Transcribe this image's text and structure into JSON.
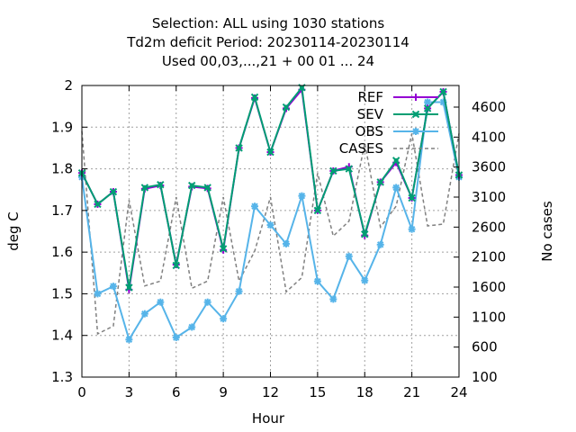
{
  "chart_data": {
    "type": "line",
    "title_lines": [
      "Selection: ALL using  1030 stations",
      "Td2m deficit   Period: 20230114-20230114",
      "Used  00,03,...,21  + 00 01 ... 24"
    ],
    "xlabel": "Hour",
    "ylabel": "deg C",
    "y2label": "No cases",
    "xlim": [
      0,
      24
    ],
    "ylim": [
      1.3,
      2.0
    ],
    "y2lim": [
      100,
      4960
    ],
    "xticks": [
      "0",
      "3",
      "6",
      "9",
      "12",
      "15",
      "18",
      "21",
      "24"
    ],
    "yticks": [
      "1.3",
      "1.4",
      "1.5",
      "1.6",
      "1.7",
      "1.8",
      "1.9",
      "2"
    ],
    "y2ticks": [
      "100",
      "600",
      "1100",
      "1600",
      "2100",
      "2600",
      "3100",
      "3600",
      "4100",
      "4600"
    ],
    "grid": true,
    "legend_position": "top-right",
    "x": [
      0,
      1,
      2,
      3,
      4,
      5,
      6,
      7,
      8,
      9,
      10,
      11,
      12,
      13,
      14,
      15,
      16,
      17,
      18,
      19,
      20,
      21,
      22,
      23,
      24
    ],
    "series": [
      {
        "name": "REF",
        "axis": "y",
        "color": "#9400d3",
        "marker": "plus",
        "values": [
          1.79,
          1.715,
          1.745,
          1.51,
          1.752,
          1.76,
          1.57,
          1.757,
          1.753,
          1.605,
          1.85,
          1.97,
          1.84,
          1.945,
          1.99,
          1.7,
          1.795,
          1.805,
          1.64,
          1.768,
          1.815,
          1.73,
          1.945,
          1.985,
          1.785
        ]
      },
      {
        "name": "SEV",
        "axis": "y",
        "color": "#009e73",
        "marker": "x",
        "values": [
          1.79,
          1.715,
          1.745,
          1.515,
          1.755,
          1.762,
          1.568,
          1.76,
          1.755,
          1.608,
          1.85,
          1.972,
          1.84,
          1.948,
          1.995,
          1.7,
          1.795,
          1.8,
          1.643,
          1.768,
          1.82,
          1.73,
          1.945,
          1.985,
          1.785
        ]
      },
      {
        "name": "OBS",
        "axis": "y",
        "color": "#56b4e9",
        "marker": "star",
        "values": [
          1.78,
          1.5,
          1.518,
          1.39,
          1.452,
          1.48,
          1.395,
          1.42,
          1.48,
          1.44,
          1.506,
          1.71,
          1.665,
          1.62,
          1.735,
          1.53,
          1.487,
          1.59,
          1.532,
          1.618,
          1.755,
          1.655,
          1.96,
          1.96,
          1.78
        ]
      },
      {
        "name": "CASES",
        "axis": "y2",
        "color": "#808080",
        "dash": true,
        "values": [
          4200,
          820,
          950,
          3050,
          1620,
          1700,
          3100,
          1580,
          1700,
          3100,
          1700,
          2200,
          3100,
          1520,
          1760,
          3500,
          2450,
          2700,
          4000,
          2600,
          2950,
          4160,
          2620,
          2650,
          4160
        ]
      }
    ]
  }
}
